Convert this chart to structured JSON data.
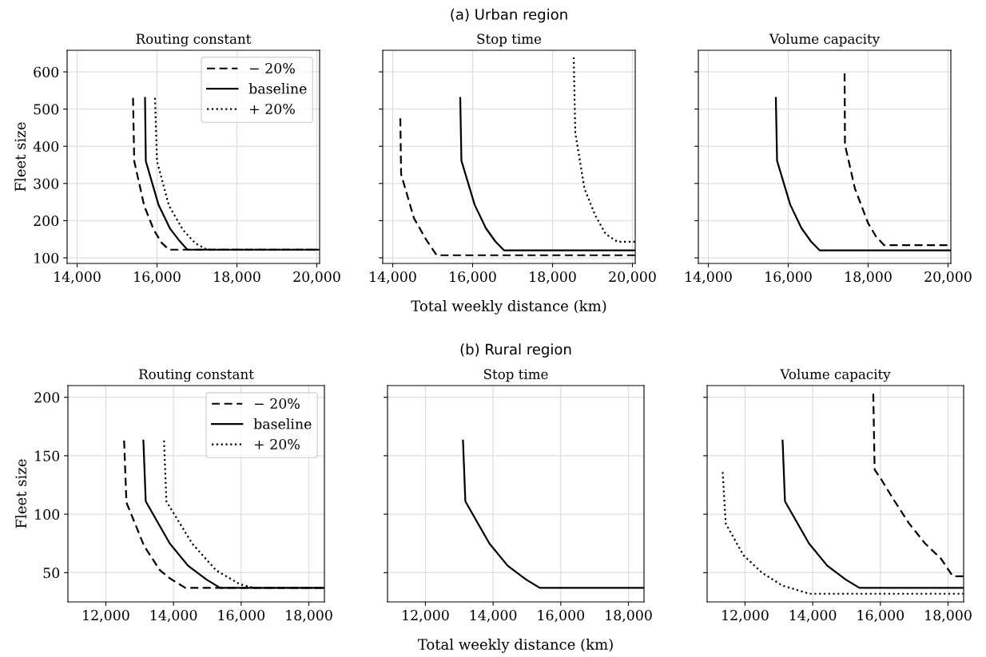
{
  "chart_data": [
    {
      "type": "line",
      "title": "Routing constant",
      "ylabel": "Fleet size",
      "xlim": [
        13750,
        20070
      ],
      "ylim": [
        85,
        658
      ],
      "xticks": [
        {
          "value": 14000,
          "label": "14,000"
        },
        {
          "value": 16000,
          "label": "16,000"
        },
        {
          "value": 18000,
          "label": "18,000"
        },
        {
          "value": 20000,
          "label": "20,000"
        }
      ],
      "yticks": [
        100,
        200,
        300,
        400,
        500,
        600
      ],
      "grid": true,
      "legend": "top right",
      "series": [
        {
          "name": "− 20%",
          "color": "#000000",
          "line_style": "dashed",
          "x": [
            15400,
            15430,
            15680,
            15920,
            16120,
            16300,
            20070
          ],
          "values": [
            530,
            360,
            240,
            175,
            140,
            122,
            122
          ]
        },
        {
          "name": "baseline",
          "color": "#000000",
          "line_style": "solid",
          "x": [
            15700,
            15720,
            16040,
            16330,
            16560,
            16760,
            20070
          ],
          "values": [
            530,
            360,
            242,
            178,
            146,
            122,
            122
          ]
        },
        {
          "name": "+ 20%",
          "color": "#000000",
          "line_style": "dotted",
          "x": [
            15950,
            16000,
            16300,
            16650,
            16950,
            17250,
            20070
          ],
          "values": [
            530,
            360,
            240,
            175,
            140,
            122,
            122
          ]
        }
      ]
    },
    {
      "type": "line",
      "title": "Stop time",
      "xlabel": "Total weekly distance (km)",
      "annotations": [
        "(a) Urban region"
      ],
      "xlim": [
        13750,
        20070
      ],
      "ylim": [
        85,
        658
      ],
      "tick_labels": "x",
      "xticks": [
        {
          "value": 14000,
          "label": "14,000"
        },
        {
          "value": 16000,
          "label": "16,000"
        },
        {
          "value": 18000,
          "label": "18,000"
        },
        {
          "value": 20000,
          "label": "20,000"
        }
      ],
      "yticks": [
        100,
        200,
        300,
        400,
        500,
        600
      ],
      "grid": true,
      "series": [
        {
          "color": "#000000",
          "line_style": "dashed",
          "x": [
            14190,
            14210,
            14530,
            14830,
            15100,
            20070
          ],
          "values": [
            475,
            325,
            207,
            150,
            107,
            107
          ]
        },
        {
          "color": "#000000",
          "line_style": "solid",
          "x": [
            15690,
            15720,
            16050,
            16330,
            16570,
            16790,
            20070
          ],
          "values": [
            530,
            361,
            243,
            180,
            144,
            120,
            120
          ]
        },
        {
          "color": "#000000",
          "line_style": "dotted",
          "x": [
            18530,
            18570,
            18800,
            19070,
            19330,
            19630,
            20070
          ],
          "values": [
            639,
            436,
            286,
            214,
            164,
            143,
            143
          ]
        }
      ]
    },
    {
      "type": "line",
      "title": "Volume capacity",
      "xlim": [
        13750,
        20070
      ],
      "ylim": [
        85,
        658
      ],
      "tick_labels": "x",
      "xticks": [
        {
          "value": 14000,
          "label": "14,000"
        },
        {
          "value": 16000,
          "label": "16,000"
        },
        {
          "value": 18000,
          "label": "18,000"
        },
        {
          "value": 20000,
          "label": "20,000"
        }
      ],
      "yticks": [
        100,
        200,
        300,
        400,
        500,
        600
      ],
      "grid": true,
      "series": [
        {
          "color": "#000000",
          "line_style": "dashed",
          "x": [
            17410,
            17420,
            17670,
            18000,
            18200,
            18400,
            20070
          ],
          "values": [
            596,
            404,
            286,
            193,
            157,
            134,
            134
          ]
        },
        {
          "color": "#000000",
          "line_style": "solid",
          "x": [
            15690,
            15720,
            16050,
            16330,
            16570,
            16790,
            20070
          ],
          "values": [
            530,
            361,
            243,
            180,
            144,
            120,
            120
          ]
        }
      ]
    },
    {
      "type": "line",
      "title": "Routing constant",
      "ylabel": "Fleet size",
      "xlim": [
        10880,
        18460
      ],
      "ylim": [
        25,
        210
      ],
      "xticks": [
        {
          "value": 12000,
          "label": "12,000"
        },
        {
          "value": 14000,
          "label": "14,000"
        },
        {
          "value": 16000,
          "label": "16,000"
        },
        {
          "value": 18000,
          "label": "18,000"
        }
      ],
      "yticks": [
        50,
        100,
        150,
        200
      ],
      "grid": true,
      "legend": "top right",
      "series": [
        {
          "name": "− 20%",
          "color": "#000000",
          "line_style": "dashed",
          "x": [
            12540,
            12610,
            13130,
            13600,
            13900,
            14350,
            18460
          ],
          "values": [
            163,
            110,
            73,
            52,
            45,
            37,
            37
          ]
        },
        {
          "name": "baseline",
          "color": "#000000",
          "line_style": "solid",
          "x": [
            13110,
            13180,
            13890,
            14430,
            14980,
            15380,
            18460
          ],
          "values": [
            163,
            111,
            75,
            56,
            44,
            37,
            37
          ]
        },
        {
          "name": "+ 20%",
          "color": "#000000",
          "line_style": "dotted",
          "x": [
            13720,
            13790,
            14550,
            15260,
            15970,
            16390,
            18460
          ],
          "values": [
            163,
            111,
            75,
            52,
            40,
            37,
            37
          ]
        }
      ]
    },
    {
      "type": "line",
      "title": "Stop time",
      "xlabel": "Total weekly distance (km)",
      "annotations": [
        "(b) Rural region"
      ],
      "xlim": [
        10880,
        18460
      ],
      "ylim": [
        25,
        210
      ],
      "tick_labels": "x",
      "xticks": [
        {
          "value": 12000,
          "label": "12,000"
        },
        {
          "value": 14000,
          "label": "14,000"
        },
        {
          "value": 16000,
          "label": "16,000"
        },
        {
          "value": 18000,
          "label": "18,000"
        }
      ],
      "yticks": [
        50,
        100,
        150,
        200
      ],
      "grid": true,
      "series": [
        {
          "color": "#000000",
          "line_style": "solid",
          "x": [
            13110,
            13180,
            13890,
            14430,
            14980,
            15380,
            18460
          ],
          "values": [
            163,
            111,
            75,
            56,
            44,
            37,
            37
          ]
        }
      ]
    },
    {
      "type": "line",
      "title": "Volume capacity",
      "xlim": [
        10880,
        18460
      ],
      "ylim": [
        25,
        210
      ],
      "tick_labels": "x",
      "xticks": [
        {
          "value": 12000,
          "label": "12,000"
        },
        {
          "value": 14000,
          "label": "14,000"
        },
        {
          "value": 16000,
          "label": "16,000"
        },
        {
          "value": 18000,
          "label": "18,000"
        }
      ],
      "yticks": [
        50,
        100,
        150,
        200
      ],
      "grid": true,
      "series": [
        {
          "color": "#000000",
          "line_style": "dashed",
          "x": [
            15790,
            15830,
            16020,
            16380,
            16850,
            17320,
            17790,
            18140,
            18460
          ],
          "values": [
            203,
            138,
            130,
            113,
            92,
            75,
            62,
            47,
            47
          ]
        },
        {
          "color": "#000000",
          "line_style": "solid",
          "x": [
            13110,
            13180,
            13890,
            14430,
            14980,
            15380,
            18460
          ],
          "values": [
            163,
            111,
            75,
            56,
            44,
            37,
            37
          ]
        },
        {
          "color": "#000000",
          "line_style": "dotted",
          "x": [
            11340,
            11430,
            11950,
            12500,
            13100,
            13900,
            18460
          ],
          "values": [
            136,
            92,
            65,
            50,
            39,
            32,
            32
          ]
        }
      ]
    }
  ]
}
